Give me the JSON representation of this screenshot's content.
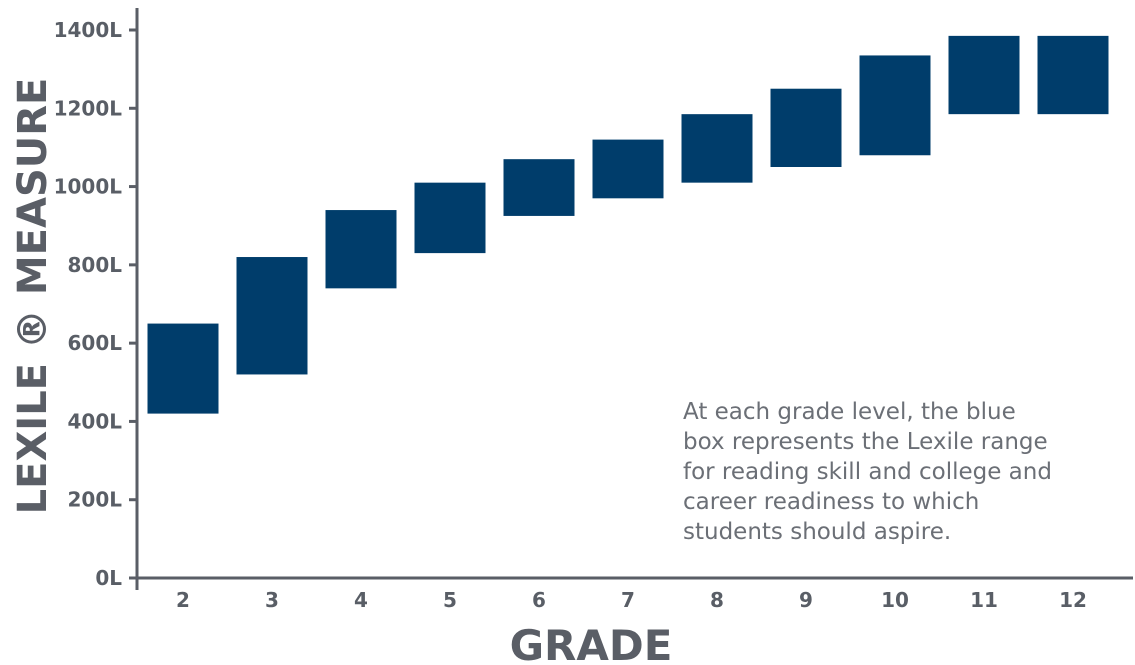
{
  "chart_data": {
    "type": "bar",
    "subtype": "floating-range",
    "xlabel": "GRADE",
    "ylabel": "LEXILE ® MEASURE",
    "ylim": [
      0,
      1400
    ],
    "y_ticks": [
      "0L",
      "200L",
      "400L",
      "600L",
      "800L",
      "1000L",
      "1200L",
      "1400L"
    ],
    "y_tick_values": [
      0,
      200,
      400,
      600,
      800,
      1000,
      1200,
      1400
    ],
    "categories": [
      "2",
      "3",
      "4",
      "5",
      "6",
      "7",
      "8",
      "9",
      "10",
      "11",
      "12"
    ],
    "series": [
      {
        "ranges": [
          [
            420,
            650
          ],
          [
            520,
            820
          ],
          [
            740,
            940
          ],
          [
            830,
            1010
          ],
          [
            925,
            1070
          ],
          [
            970,
            1120
          ],
          [
            1010,
            1185
          ],
          [
            1050,
            1250
          ],
          [
            1080,
            1335
          ],
          [
            1185,
            1385
          ],
          [
            1185,
            1385
          ]
        ]
      }
    ],
    "bar_color": "#003d6b",
    "grid": false,
    "annotation": [
      "At each grade level, the blue",
      "box represents the Lexile range",
      "for reading skill and college and",
      "career readiness to which",
      "students should aspire."
    ]
  }
}
